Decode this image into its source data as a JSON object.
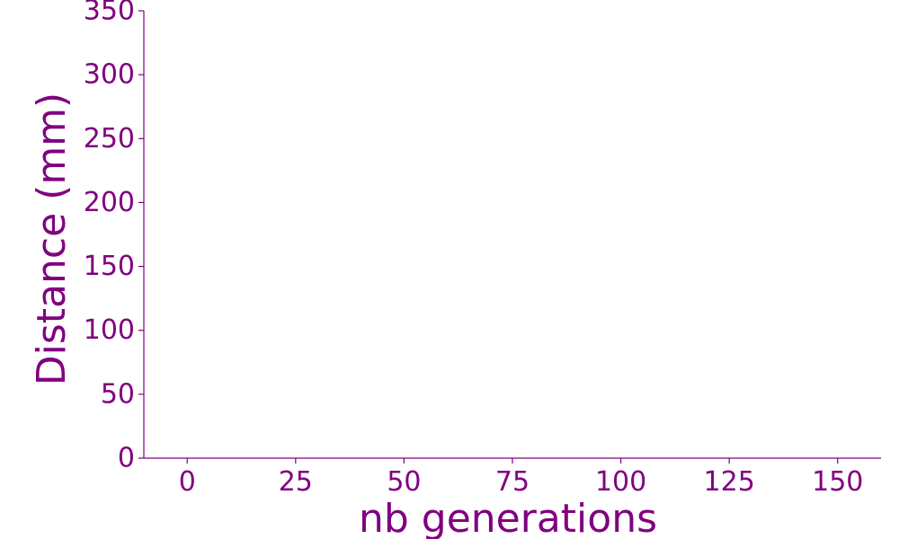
{
  "chart_data": {
    "type": "line",
    "title": "",
    "xlabel": "nb generations",
    "ylabel": "Distance (mm)",
    "xlim": [
      -10,
      160
    ],
    "ylim": [
      0,
      350
    ],
    "x_ticks": [
      0,
      25,
      50,
      75,
      100,
      125,
      150
    ],
    "y_ticks": [
      0,
      50,
      100,
      150,
      200,
      250,
      300,
      350
    ],
    "series": [],
    "grid": false,
    "legend": "none",
    "color": "#800080"
  }
}
